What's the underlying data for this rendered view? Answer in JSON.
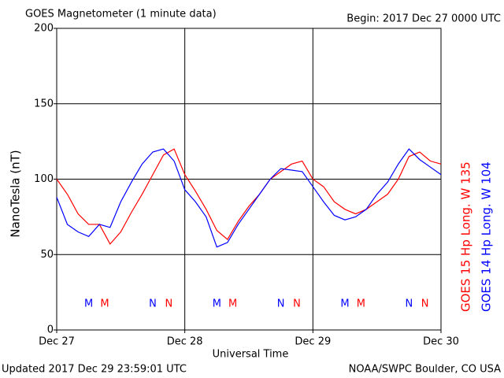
{
  "chart_data": {
    "type": "line",
    "title": "GOES Magnetometer (1 minute data)",
    "subtitle": "Begin:  2017 Dec 27 0000 UTC",
    "footer_left": "Updated 2017 Dec 29 23:59:01 UTC",
    "footer_right": "NOAA/SWPC Boulder, CO USA",
    "xlabel": "Universal Time",
    "ylabel": "NanoTesla (nT)",
    "x": [
      0,
      2,
      4,
      6,
      8,
      10,
      12,
      14,
      16,
      18,
      20,
      22,
      24,
      26,
      28,
      30,
      32,
      34,
      36,
      38,
      40,
      42,
      44,
      46,
      48,
      50,
      52,
      54,
      56,
      58,
      60,
      62,
      64,
      66,
      68,
      70,
      72
    ],
    "series": [
      {
        "name": "GOES 15 Hp  Long. W 135",
        "color": "#ff0000",
        "values": [
          100,
          90,
          77,
          70,
          70,
          57,
          65,
          78,
          90,
          103,
          116,
          120,
          103,
          92,
          80,
          66,
          60,
          72,
          82,
          90,
          100,
          105,
          110,
          112,
          100,
          95,
          85,
          80,
          77,
          80,
          85,
          90,
          100,
          115,
          118,
          112,
          110
        ]
      },
      {
        "name": "GOES 14 Hp  Long. W 104",
        "color": "#0000ff",
        "values": [
          88,
          70,
          65,
          62,
          70,
          68,
          85,
          98,
          110,
          118,
          120,
          112,
          93,
          85,
          75,
          55,
          58,
          70,
          80,
          90,
          100,
          107,
          106,
          105,
          95,
          85,
          76,
          73,
          75,
          80,
          90,
          98,
          110,
          120,
          113,
          108,
          103
        ]
      }
    ],
    "markers": [
      {
        "label": "M",
        "x": 6,
        "color": "#0000ff"
      },
      {
        "label": "M",
        "x": 9,
        "color": "#ff0000"
      },
      {
        "label": "N",
        "x": 18,
        "color": "#0000ff"
      },
      {
        "label": "N",
        "x": 21,
        "color": "#ff0000"
      },
      {
        "label": "M",
        "x": 30,
        "color": "#0000ff"
      },
      {
        "label": "M",
        "x": 33,
        "color": "#ff0000"
      },
      {
        "label": "N",
        "x": 42,
        "color": "#0000ff"
      },
      {
        "label": "N",
        "x": 45,
        "color": "#ff0000"
      },
      {
        "label": "M",
        "x": 54,
        "color": "#0000ff"
      },
      {
        "label": "M",
        "x": 57,
        "color": "#ff0000"
      },
      {
        "label": "N",
        "x": 66,
        "color": "#0000ff"
      },
      {
        "label": "N",
        "x": 69,
        "color": "#ff0000"
      }
    ],
    "xlim": [
      0,
      72
    ],
    "xticks": [
      {
        "value": 0,
        "label": "Dec 27"
      },
      {
        "value": 24,
        "label": "Dec 28"
      },
      {
        "value": 48,
        "label": "Dec 29"
      },
      {
        "value": 72,
        "label": "Dec 30"
      }
    ],
    "ylim": [
      0,
      200
    ],
    "yticks": [
      0,
      50,
      100,
      150,
      200
    ],
    "grid": true
  }
}
